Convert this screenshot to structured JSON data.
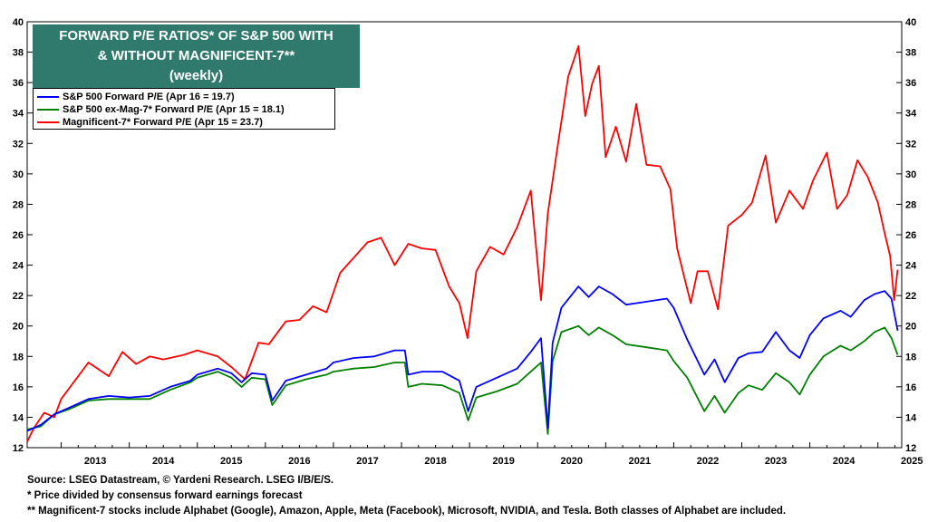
{
  "title": {
    "line1": "FORWARD P/E RATIOS* OF S&P 500 WITH",
    "line2": "& WITHOUT MAGNIFICENT-7**",
    "line3": "(weekly)"
  },
  "footer": {
    "line1": "Source: LSEG Datastream, © Yardeni Research. LSEG I/B/E/S.",
    "line2": "* Price divided by consensus forward earnings forecast",
    "line3": "** Magnificent-7 stocks include Alphabet (Google), Amazon, Apple, Meta (Facebook), Microsoft, NVIDIA, and Tesla. Both classes of Alphabet are included."
  },
  "chart_data": {
    "type": "line",
    "title": "FORWARD P/E RATIOS* OF S&P 500 WITH & WITHOUT MAGNIFICENT-7** (weekly)",
    "ylim": [
      12,
      40
    ],
    "y_ticks": [
      12,
      14,
      16,
      18,
      20,
      22,
      24,
      26,
      28,
      30,
      32,
      34,
      36,
      38,
      40
    ],
    "xlim": [
      2012.5,
      2025.35
    ],
    "x_tick_labels": [
      "2013",
      "2014",
      "2015",
      "2016",
      "2017",
      "2018",
      "2019",
      "2020",
      "2021",
      "2022",
      "2023",
      "2024",
      "2025"
    ],
    "grid": false,
    "legend_position": "top-left",
    "series": [
      {
        "name": "S&P 500 Forward P/E (Apr 16 = 19.7)",
        "color": "#0000ff",
        "x": [
          2012.5,
          2012.7,
          2012.9,
          2013.1,
          2013.4,
          2013.7,
          2014.0,
          2014.3,
          2014.6,
          2014.9,
          2015.0,
          2015.3,
          2015.5,
          2015.65,
          2015.8,
          2016.0,
          2016.1,
          2016.3,
          2016.6,
          2016.9,
          2017.0,
          2017.3,
          2017.6,
          2017.9,
          2018.05,
          2018.1,
          2018.3,
          2018.6,
          2018.85,
          2018.98,
          2019.1,
          2019.4,
          2019.7,
          2019.9,
          2020.05,
          2020.15,
          2020.22,
          2020.35,
          2020.6,
          2020.75,
          2020.9,
          2021.1,
          2021.3,
          2021.6,
          2021.9,
          2022.0,
          2022.2,
          2022.45,
          2022.6,
          2022.75,
          2022.95,
          2023.1,
          2023.3,
          2023.5,
          2023.7,
          2023.85,
          2024.0,
          2024.2,
          2024.45,
          2024.6,
          2024.8,
          2024.95,
          2025.1,
          2025.2,
          2025.29
        ],
        "values": [
          13.1,
          13.5,
          14.2,
          14.6,
          15.2,
          15.4,
          15.3,
          15.4,
          16.0,
          16.4,
          16.8,
          17.2,
          16.9,
          16.3,
          16.9,
          16.8,
          15.1,
          16.4,
          16.8,
          17.2,
          17.6,
          17.9,
          18.0,
          18.4,
          18.4,
          16.8,
          17.0,
          17.0,
          16.4,
          14.4,
          16.0,
          16.6,
          17.2,
          18.3,
          19.2,
          13.3,
          18.9,
          21.2,
          22.6,
          21.9,
          22.6,
          22.1,
          21.4,
          21.6,
          21.8,
          21.2,
          19.1,
          16.8,
          17.8,
          16.3,
          17.9,
          18.2,
          18.3,
          19.6,
          18.4,
          17.9,
          19.4,
          20.5,
          21.0,
          20.6,
          21.7,
          22.1,
          22.3,
          21.8,
          19.7
        ]
      },
      {
        "name": "S&P 500 ex-Mag-7* Forward P/E (Apr 15 = 18.1)",
        "color": "#008000",
        "x": [
          2012.5,
          2012.7,
          2012.9,
          2013.1,
          2013.4,
          2013.7,
          2014.0,
          2014.3,
          2014.6,
          2014.9,
          2015.0,
          2015.3,
          2015.5,
          2015.65,
          2015.8,
          2016.0,
          2016.1,
          2016.3,
          2016.6,
          2016.9,
          2017.0,
          2017.3,
          2017.6,
          2017.9,
          2018.05,
          2018.1,
          2018.3,
          2018.6,
          2018.85,
          2018.98,
          2019.1,
          2019.4,
          2019.7,
          2019.9,
          2020.05,
          2020.15,
          2020.22,
          2020.35,
          2020.6,
          2020.75,
          2020.9,
          2021.1,
          2021.3,
          2021.6,
          2021.9,
          2022.0,
          2022.2,
          2022.45,
          2022.6,
          2022.75,
          2022.95,
          2023.1,
          2023.3,
          2023.5,
          2023.7,
          2023.85,
          2024.0,
          2024.2,
          2024.45,
          2024.6,
          2024.8,
          2024.95,
          2025.1,
          2025.2,
          2025.29
        ],
        "values": [
          13.2,
          13.4,
          14.2,
          14.5,
          15.1,
          15.2,
          15.2,
          15.2,
          15.8,
          16.3,
          16.6,
          17.0,
          16.6,
          16.0,
          16.6,
          16.5,
          14.8,
          16.1,
          16.5,
          16.8,
          17.0,
          17.2,
          17.3,
          17.6,
          17.6,
          16.0,
          16.2,
          16.1,
          15.6,
          13.8,
          15.3,
          15.7,
          16.2,
          17.0,
          17.6,
          12.9,
          17.7,
          19.6,
          20.0,
          19.4,
          19.9,
          19.4,
          18.8,
          18.6,
          18.4,
          17.7,
          16.6,
          14.4,
          15.4,
          14.3,
          15.6,
          16.1,
          15.8,
          16.9,
          16.3,
          15.5,
          16.8,
          18.0,
          18.7,
          18.4,
          19.0,
          19.6,
          19.9,
          19.2,
          18.1
        ]
      },
      {
        "name": "Magnificent-7* Forward P/E (Apr 15 = 23.7)",
        "color": "#ff0000",
        "x": [
          2012.5,
          2012.6,
          2012.75,
          2012.9,
          2013.0,
          2013.2,
          2013.4,
          2013.7,
          2013.9,
          2014.1,
          2014.3,
          2014.5,
          2014.8,
          2015.0,
          2015.3,
          2015.5,
          2015.7,
          2015.9,
          2016.05,
          2016.3,
          2016.5,
          2016.7,
          2016.9,
          2017.1,
          2017.3,
          2017.5,
          2017.7,
          2017.9,
          2018.1,
          2018.3,
          2018.5,
          2018.7,
          2018.85,
          2018.97,
          2019.1,
          2019.3,
          2019.5,
          2019.7,
          2019.9,
          2020.05,
          2020.15,
          2020.3,
          2020.45,
          2020.6,
          2020.7,
          2020.8,
          2020.9,
          2021.0,
          2021.15,
          2021.3,
          2021.45,
          2021.6,
          2021.8,
          2021.95,
          2022.05,
          2022.25,
          2022.35,
          2022.5,
          2022.65,
          2022.8,
          2023.0,
          2023.15,
          2023.35,
          2023.5,
          2023.7,
          2023.9,
          2024.05,
          2024.25,
          2024.4,
          2024.55,
          2024.7,
          2024.85,
          2025.0,
          2025.1,
          2025.18,
          2025.24,
          2025.29
        ],
        "values": [
          12.4,
          13.3,
          14.3,
          14.0,
          15.2,
          16.4,
          17.6,
          16.7,
          18.3,
          17.5,
          18.0,
          17.8,
          18.1,
          18.4,
          18.0,
          17.3,
          16.5,
          18.9,
          18.8,
          20.3,
          20.4,
          21.3,
          20.9,
          23.5,
          24.5,
          25.5,
          25.8,
          24.0,
          25.4,
          25.1,
          25.0,
          22.6,
          21.5,
          19.2,
          23.6,
          25.2,
          24.7,
          26.5,
          28.9,
          21.7,
          27.4,
          32.0,
          36.4,
          38.4,
          33.8,
          35.9,
          37.1,
          31.1,
          33.1,
          30.8,
          34.6,
          30.6,
          30.5,
          29.0,
          25.1,
          21.5,
          23.6,
          23.6,
          21.1,
          26.6,
          27.3,
          28.1,
          31.2,
          26.8,
          28.9,
          27.7,
          29.6,
          31.4,
          27.7,
          28.6,
          30.9,
          29.8,
          28.1,
          26.1,
          24.6,
          21.7,
          23.7
        ]
      }
    ]
  }
}
